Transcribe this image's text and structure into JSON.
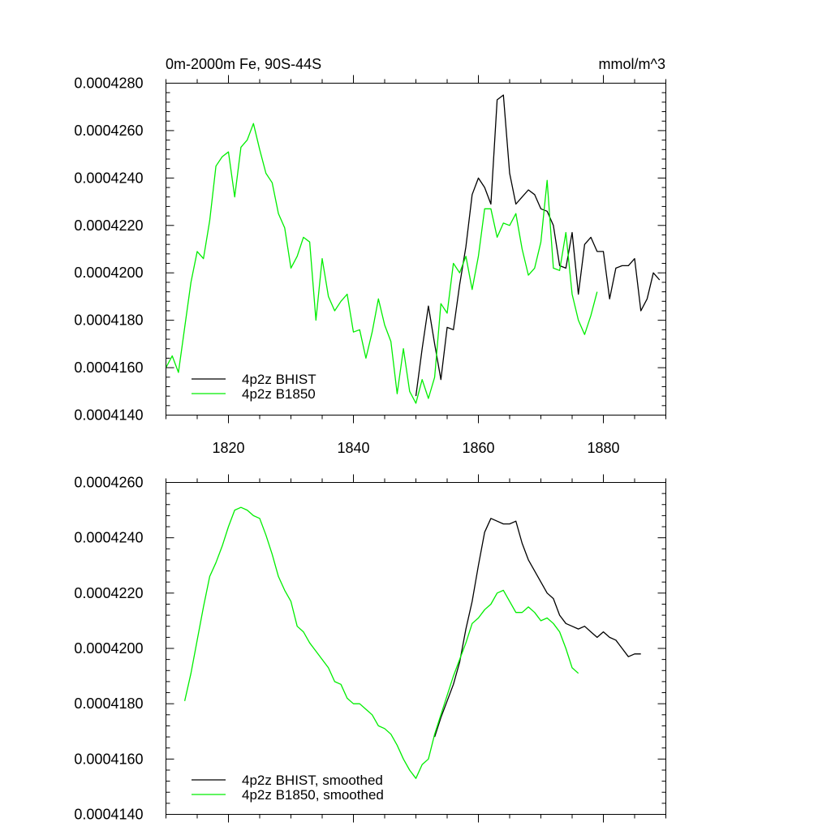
{
  "chart_data": [
    {
      "type": "line",
      "title_left": "0m-2000m Fe, 90S-44S",
      "title_right": "mmol/m^3",
      "xlim": [
        1810,
        1890
      ],
      "ylim": [
        0.000414,
        0.000428
      ],
      "x_ticks": [
        1820,
        1840,
        1860,
        1880
      ],
      "x_tick_labels": [
        "1820",
        "1840",
        "1860",
        "1880"
      ],
      "y_ticks": [
        0.000414,
        0.000416,
        0.000418,
        0.00042,
        0.000422,
        0.000424,
        0.000426,
        0.000428
      ],
      "y_tick_labels": [
        "0.0004140",
        "0.0004160",
        "0.0004180",
        "0.0004200",
        "0.0004220",
        "0.0004240",
        "0.0004260",
        "0.0004280"
      ],
      "legend_position": "bottom-left",
      "series": [
        {
          "name": "4p2z BHIST",
          "color": "#000000",
          "x": [
            1850,
            1851,
            1852,
            1853,
            1854,
            1855,
            1856,
            1857,
            1858,
            1859,
            1860,
            1861,
            1862,
            1863,
            1864,
            1865,
            1866,
            1867,
            1868,
            1869,
            1870,
            1871,
            1872,
            1873,
            1874,
            1875,
            1876,
            1877,
            1878,
            1879,
            1880,
            1881,
            1882,
            1883,
            1884,
            1885,
            1886,
            1887,
            1888,
            1889
          ],
          "y": [
            0.0004148,
            0.0004168,
            0.0004186,
            0.000417,
            0.0004155,
            0.0004177,
            0.0004176,
            0.0004195,
            0.0004211,
            0.0004233,
            0.000424,
            0.0004236,
            0.0004229,
            0.0004273,
            0.0004275,
            0.0004242,
            0.0004229,
            0.0004232,
            0.0004235,
            0.0004233,
            0.0004227,
            0.0004226,
            0.000422,
            0.0004203,
            0.0004202,
            0.0004217,
            0.0004191,
            0.0004212,
            0.0004215,
            0.0004209,
            0.0004209,
            0.0004189,
            0.0004202,
            0.0004203,
            0.0004203,
            0.0004206,
            0.0004184,
            0.0004189,
            0.00042,
            0.0004197
          ]
        },
        {
          "name": "4p2z B1850",
          "color": "#00ee00",
          "x": [
            1810,
            1811,
            1812,
            1813,
            1814,
            1815,
            1816,
            1817,
            1818,
            1819,
            1820,
            1821,
            1822,
            1823,
            1824,
            1825,
            1826,
            1827,
            1828,
            1829,
            1830,
            1831,
            1832,
            1833,
            1834,
            1835,
            1836,
            1837,
            1838,
            1839,
            1840,
            1841,
            1842,
            1843,
            1844,
            1845,
            1846,
            1847,
            1848,
            1849,
            1850,
            1851,
            1852,
            1853,
            1854,
            1855,
            1856,
            1857,
            1858,
            1859,
            1860,
            1861,
            1862,
            1863,
            1864,
            1865,
            1866,
            1867,
            1868,
            1869,
            1870,
            1871,
            1872,
            1873,
            1874,
            1875,
            1876,
            1877,
            1878,
            1879
          ],
          "y": [
            0.000416,
            0.0004165,
            0.0004158,
            0.0004177,
            0.0004196,
            0.0004209,
            0.0004206,
            0.0004222,
            0.0004245,
            0.0004249,
            0.0004251,
            0.0004232,
            0.0004253,
            0.0004256,
            0.0004263,
            0.0004252,
            0.0004242,
            0.0004238,
            0.0004225,
            0.0004219,
            0.0004202,
            0.0004207,
            0.0004215,
            0.0004213,
            0.000418,
            0.0004206,
            0.000419,
            0.0004184,
            0.0004188,
            0.0004191,
            0.0004175,
            0.0004176,
            0.0004164,
            0.0004175,
            0.0004189,
            0.0004178,
            0.0004171,
            0.0004149,
            0.0004168,
            0.000415,
            0.0004145,
            0.0004155,
            0.0004147,
            0.0004156,
            0.0004187,
            0.0004183,
            0.0004204,
            0.00042,
            0.0004207,
            0.0004193,
            0.0004207,
            0.0004227,
            0.0004227,
            0.0004215,
            0.0004221,
            0.000422,
            0.0004225,
            0.000421,
            0.0004199,
            0.0004202,
            0.0004213,
            0.0004239,
            0.0004202,
            0.0004201,
            0.0004217,
            0.0004191,
            0.000418,
            0.0004174,
            0.0004182,
            0.0004192
          ]
        }
      ]
    },
    {
      "type": "line",
      "xlim": [
        1810,
        1890
      ],
      "ylim": [
        0.000414,
        0.000426
      ],
      "x_ticks": [
        1820,
        1840,
        1860,
        1880
      ],
      "y_ticks": [
        0.000414,
        0.000416,
        0.000418,
        0.00042,
        0.000422,
        0.000424,
        0.000426
      ],
      "y_tick_labels": [
        "0.0004140",
        "0.0004160",
        "0.0004180",
        "0.0004200",
        "0.0004220",
        "0.0004240",
        "0.0004260"
      ],
      "legend_position": "bottom-left",
      "series": [
        {
          "name": "4p2z BHIST, smoothed",
          "color": "#000000",
          "x": [
            1853,
            1854,
            1855,
            1856,
            1857,
            1858,
            1859,
            1860,
            1861,
            1862,
            1863,
            1864,
            1865,
            1866,
            1867,
            1868,
            1869,
            1870,
            1871,
            1872,
            1873,
            1874,
            1875,
            1876,
            1877,
            1878,
            1879,
            1880,
            1881,
            1882,
            1883,
            1884,
            1885,
            1886
          ],
          "y": [
            0.0004168,
            0.0004175,
            0.0004181,
            0.0004187,
            0.0004195,
            0.0004207,
            0.0004217,
            0.000423,
            0.0004242,
            0.0004247,
            0.0004246,
            0.0004245,
            0.0004245,
            0.0004246,
            0.0004238,
            0.0004232,
            0.0004228,
            0.0004224,
            0.000422,
            0.0004218,
            0.0004212,
            0.0004209,
            0.0004208,
            0.0004207,
            0.0004208,
            0.0004206,
            0.0004204,
            0.0004206,
            0.0004204,
            0.0004203,
            0.00042,
            0.0004197,
            0.0004198,
            0.0004198
          ]
        },
        {
          "name": "4p2z B1850, smoothed",
          "color": "#00ee00",
          "x": [
            1813,
            1814,
            1815,
            1816,
            1817,
            1818,
            1819,
            1820,
            1821,
            1822,
            1823,
            1824,
            1825,
            1826,
            1827,
            1828,
            1829,
            1830,
            1831,
            1832,
            1833,
            1834,
            1835,
            1836,
            1837,
            1838,
            1839,
            1840,
            1841,
            1842,
            1843,
            1844,
            1845,
            1846,
            1847,
            1848,
            1849,
            1850,
            1851,
            1852,
            1853,
            1854,
            1855,
            1856,
            1857,
            1858,
            1859,
            1860,
            1861,
            1862,
            1863,
            1864,
            1865,
            1866,
            1867,
            1868,
            1869,
            1870,
            1871,
            1872,
            1873,
            1874,
            1875,
            1876
          ],
          "y": [
            0.0004181,
            0.0004191,
            0.0004203,
            0.0004215,
            0.0004226,
            0.0004231,
            0.0004237,
            0.0004244,
            0.000425,
            0.0004251,
            0.000425,
            0.0004248,
            0.0004247,
            0.0004241,
            0.0004234,
            0.0004226,
            0.0004221,
            0.0004217,
            0.0004208,
            0.0004206,
            0.0004202,
            0.0004199,
            0.0004196,
            0.0004193,
            0.0004188,
            0.0004187,
            0.0004182,
            0.000418,
            0.000418,
            0.0004178,
            0.0004176,
            0.0004172,
            0.0004171,
            0.0004169,
            0.0004165,
            0.000416,
            0.0004156,
            0.0004153,
            0.0004158,
            0.000416,
            0.0004169,
            0.0004176,
            0.0004183,
            0.000419,
            0.0004196,
            0.0004202,
            0.0004209,
            0.0004211,
            0.0004214,
            0.0004216,
            0.000422,
            0.0004221,
            0.0004217,
            0.0004213,
            0.0004213,
            0.0004215,
            0.0004213,
            0.000421,
            0.0004211,
            0.0004209,
            0.0004206,
            0.00042,
            0.0004193,
            0.0004191
          ]
        }
      ]
    }
  ]
}
